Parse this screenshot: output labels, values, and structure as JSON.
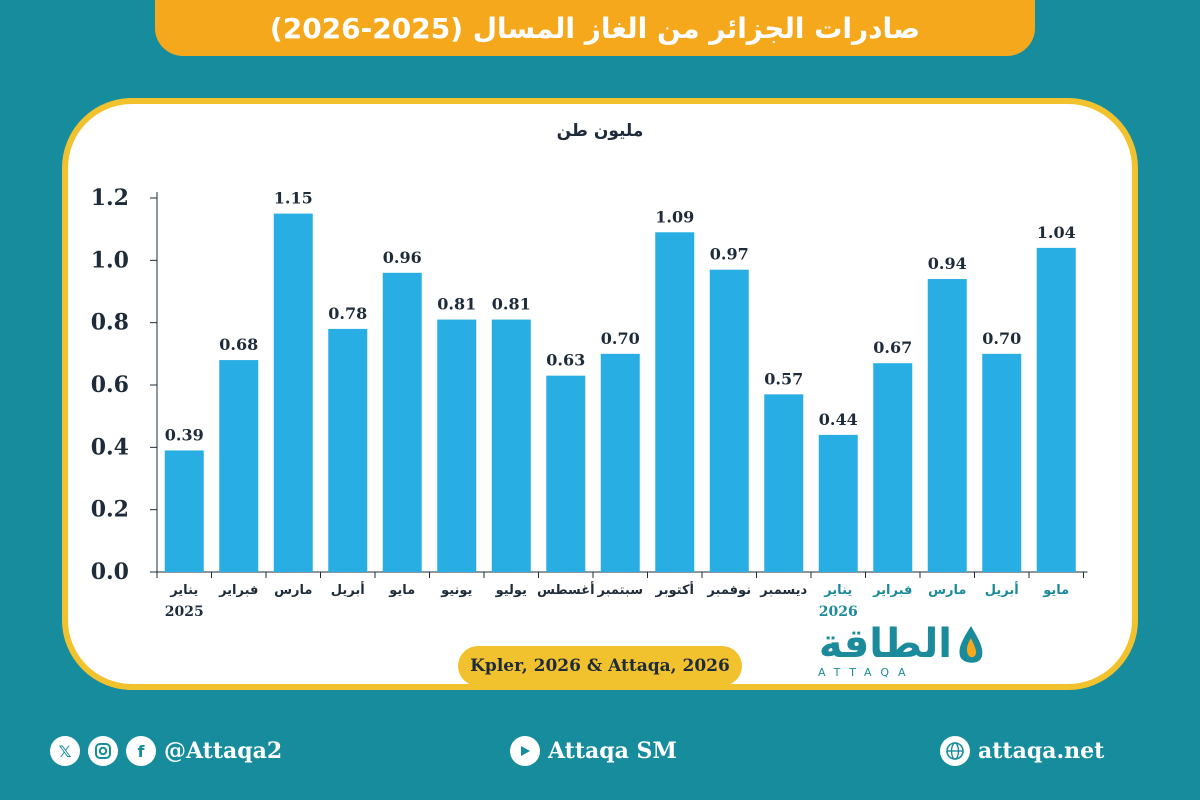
{
  "header": {
    "title": "صادرات الجزائر من الغاز المسال (2025-2026)"
  },
  "chart_data": {
    "type": "bar",
    "unit_label": "مليون طن",
    "ylim": [
      0,
      1.2
    ],
    "yticks": [
      "0.0",
      "0.2",
      "0.4",
      "0.6",
      "0.8",
      "1.0",
      "1.2"
    ],
    "categories": [
      "يناير",
      "فبراير",
      "مارس",
      "أبريل",
      "مايو",
      "يونيو",
      "يوليو",
      "أغسطس",
      "سبتمبر",
      "أكتوبر",
      "نوفمبر",
      "ديسمبر",
      "يناير",
      "فبراير",
      "مارس",
      "أبريل",
      "مايو"
    ],
    "year_labels": {
      "0": "2025",
      "12": "2026"
    },
    "values": [
      0.39,
      0.68,
      1.15,
      0.78,
      0.96,
      0.81,
      0.81,
      0.63,
      0.7,
      1.09,
      0.97,
      0.57,
      0.44,
      0.67,
      0.94,
      0.7,
      1.04
    ],
    "value_labels": [
      "0.39",
      "0.68",
      "1.15",
      "0.78",
      "0.96",
      "0.81",
      "0.81",
      "0.63",
      "0.70",
      "1.09",
      "0.97",
      "0.57",
      "0.44",
      "0.67",
      "0.94",
      "0.70",
      "1.04"
    ],
    "grid": false,
    "colors": {
      "bar": "#29aee3",
      "label_2025": "#1e2b3a",
      "label_2026": "#1b8a9a",
      "axis": "#1e2b3a"
    }
  },
  "source": {
    "text": "Kpler, 2026 & Attaqa, 2026"
  },
  "logo": {
    "arabic": "الطاقة",
    "latin": "ATTAQA"
  },
  "footer": {
    "social_handle": "@Attaqa2",
    "youtube": "Attaqa SM",
    "website": "attaqa.net",
    "icons": [
      "x-icon",
      "instagram-icon",
      "facebook-icon",
      "youtube-icon",
      "globe-icon"
    ]
  },
  "colors": {
    "background": "#168c9d",
    "title_bar": "#f6a81d",
    "card_border": "#f2c12e"
  }
}
